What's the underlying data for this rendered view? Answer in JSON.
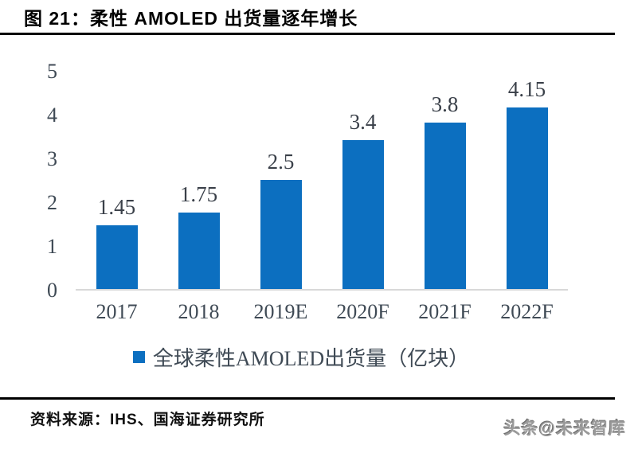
{
  "header": {
    "title": "图 21：柔性 AMOLED 出货量逐年增长"
  },
  "chart_data": {
    "type": "bar",
    "title": "柔性 AMOLED 出货量逐年增长",
    "categories": [
      "2017",
      "2018",
      "2019E",
      "2020F",
      "2021F",
      "2022F"
    ],
    "values": [
      1.45,
      1.75,
      2.5,
      3.4,
      3.8,
      4.15
    ],
    "data_labels": [
      "1.45",
      "1.75",
      "2.5",
      "3.4",
      "3.8",
      "4.15"
    ],
    "legend": "全球柔性AMOLED出货量（亿块）",
    "legend_position": "bottom",
    "xlabel": "",
    "ylabel": "",
    "ylim": [
      0,
      5
    ],
    "yticks": [
      0,
      1,
      2,
      3,
      4,
      5
    ],
    "grid": false,
    "bar_color": "#0C6FC0",
    "axis_label_color": "#3F4A55",
    "baseline_color": "#D8D8D8"
  },
  "footer": {
    "source": "资料来源：IHS、国海证券研究所",
    "watermark": "头条@未来智库"
  }
}
